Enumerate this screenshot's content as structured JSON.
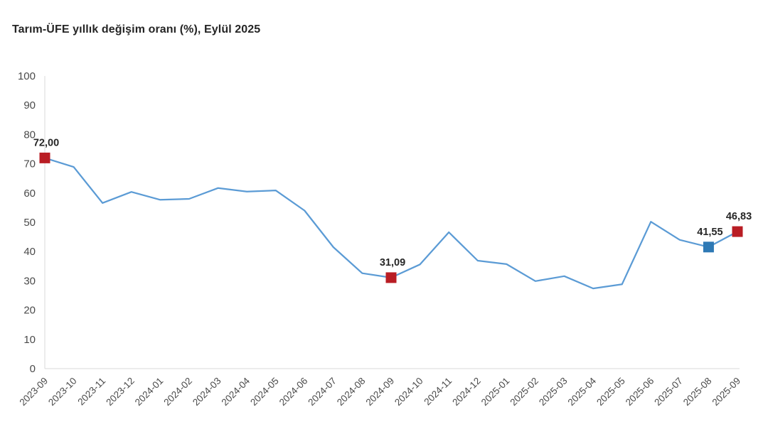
{
  "page": {
    "background_color": "#ffffff"
  },
  "chart_data": {
    "type": "line",
    "title": "Tarım-ÜFE yıllık değişim oranı (%), Eylül 2025",
    "xlabel": "",
    "ylabel": "",
    "ylim": [
      0,
      100
    ],
    "y_ticks": [
      0,
      10,
      20,
      30,
      40,
      50,
      60,
      70,
      80,
      90,
      100
    ],
    "grid": false,
    "legend": "none",
    "line_color": "#5b9bd5",
    "axis_line_color": "#d9d9d9",
    "tick_label_color": "#4a4a4a",
    "annotation_text_color": "#262626",
    "categories": [
      "2023-09",
      "2023-10",
      "2023-11",
      "2023-12",
      "2024-01",
      "2024-02",
      "2024-03",
      "2024-04",
      "2024-05",
      "2024-06",
      "2024-07",
      "2024-08",
      "2024-09",
      "2024-10",
      "2024-11",
      "2024-12",
      "2025-01",
      "2025-02",
      "2025-03",
      "2025-04",
      "2025-05",
      "2025-06",
      "2025-07",
      "2025-08",
      "2025-09"
    ],
    "values": [
      72.0,
      68.9,
      56.6,
      60.4,
      57.7,
      58.0,
      61.7,
      60.5,
      60.9,
      54.0,
      41.5,
      32.6,
      31.09,
      35.6,
      46.6,
      36.9,
      35.7,
      29.9,
      31.6,
      27.4,
      28.8,
      50.2,
      44.0,
      41.55,
      46.83
    ],
    "annotated_points": [
      {
        "category": "2023-09",
        "value": 72.0,
        "label": "72,00",
        "marker_color": "#b91d24"
      },
      {
        "category": "2024-09",
        "value": 31.09,
        "label": "31,09",
        "marker_color": "#b91d24"
      },
      {
        "category": "2025-08",
        "value": 41.55,
        "label": "41,55",
        "marker_color": "#2e79b5"
      },
      {
        "category": "2025-09",
        "value": 46.83,
        "label": "46,83",
        "marker_color": "#b91d24"
      }
    ]
  }
}
